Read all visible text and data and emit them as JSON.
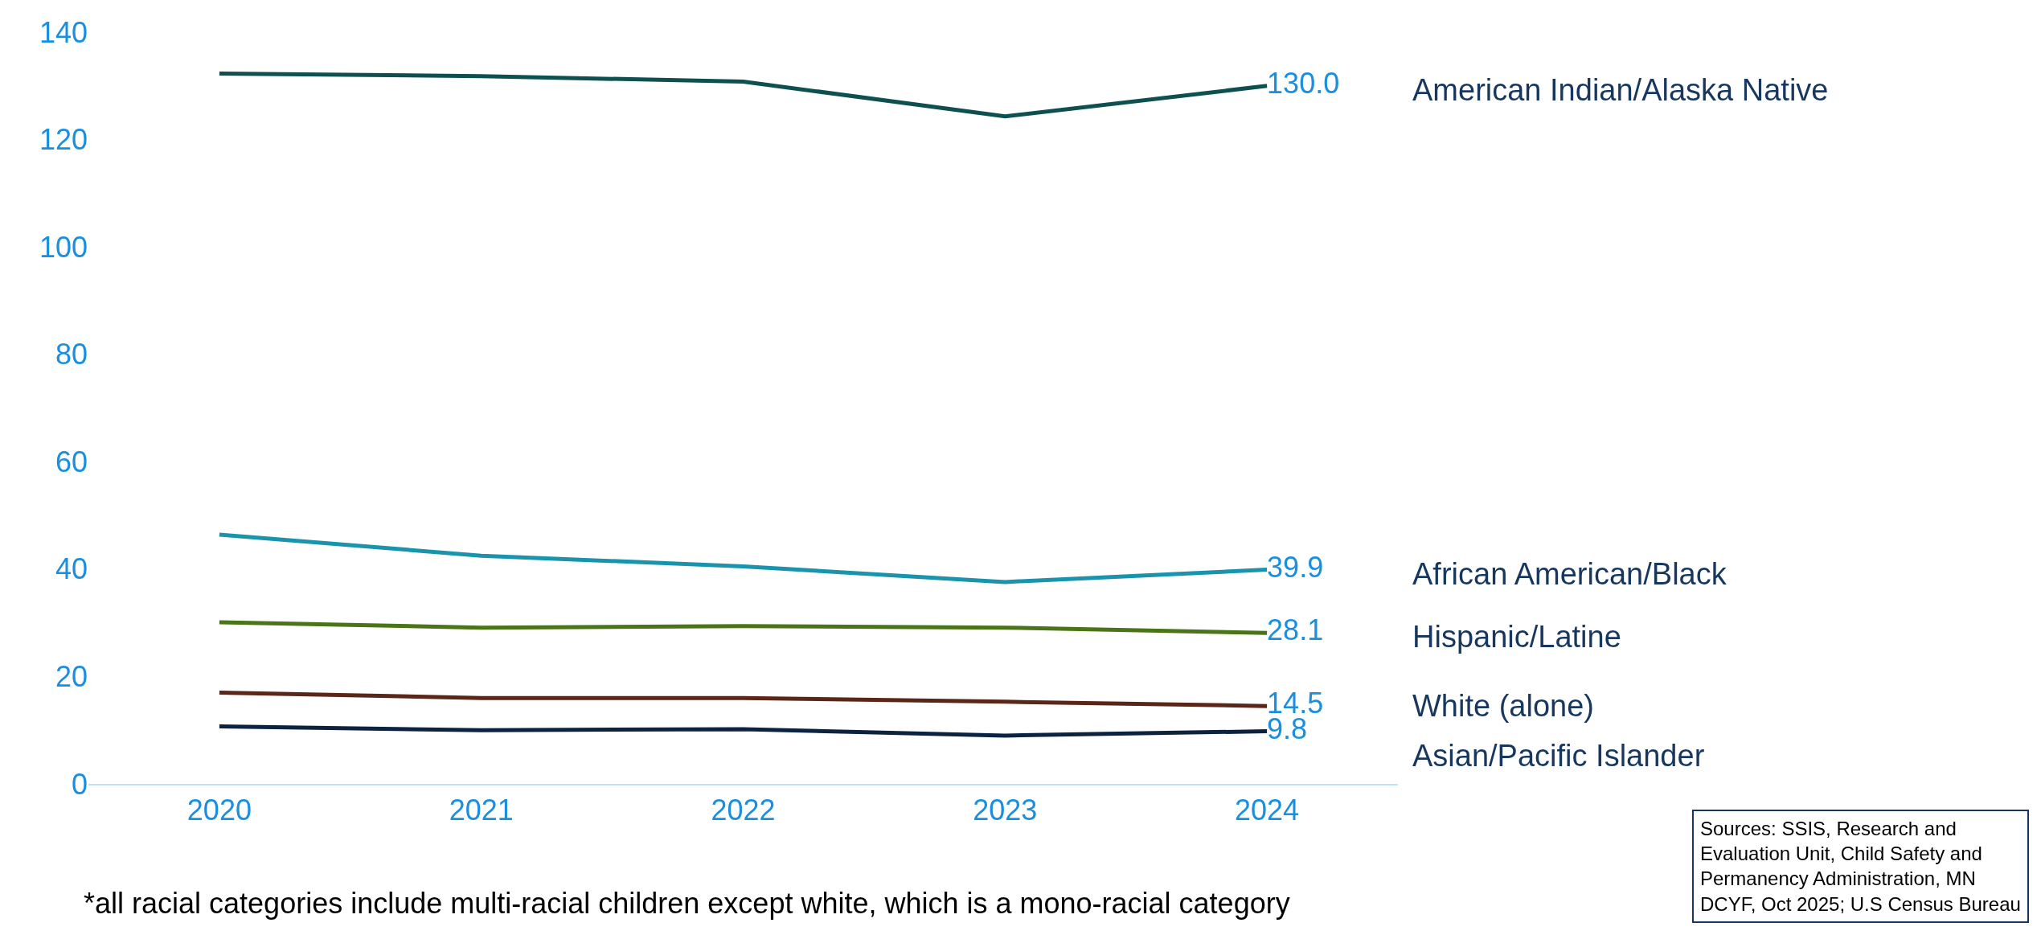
{
  "chart_data": {
    "type": "line",
    "categories": [
      "2020",
      "2021",
      "2022",
      "2023",
      "2024"
    ],
    "ylim": [
      0,
      140
    ],
    "yticks": [
      0,
      20,
      40,
      60,
      80,
      100,
      120,
      140
    ],
    "grid": false,
    "legend": false,
    "marker": "none",
    "line_style": "solid",
    "series": [
      {
        "name": "American Indian/Alaska Native",
        "color": "#0e4f50",
        "values": [
          132.3,
          131.8,
          130.8,
          124.3,
          130.0
        ],
        "value_labels": [
          null,
          null,
          null,
          null,
          "130.0"
        ]
      },
      {
        "name": "African American/Black",
        "color": "#1a94ad",
        "values": [
          46.4,
          42.5,
          40.5,
          37.6,
          39.9
        ],
        "value_labels": [
          null,
          null,
          null,
          null,
          "39.9"
        ]
      },
      {
        "name": "Hispanic/Latine",
        "color": "#4a7418",
        "values": [
          30.1,
          29.1,
          29.4,
          29.1,
          28.1
        ],
        "value_labels": [
          null,
          null,
          null,
          null,
          "28.1"
        ]
      },
      {
        "name": "White (alone)",
        "color": "#5a2618",
        "values": [
          17.0,
          16.0,
          16.0,
          15.3,
          14.5
        ],
        "value_labels": [
          null,
          null,
          null,
          null,
          "14.5"
        ]
      },
      {
        "name": "Asian/Pacific Islander",
        "color": "#0b2240",
        "values": [
          10.7,
          10.0,
          10.2,
          9.0,
          9.8
        ],
        "value_labels": [
          null,
          null,
          null,
          null,
          "9.8"
        ]
      }
    ],
    "annotations": [
      "*all racial categories include multi-racial children except white, which is a mono-racial category",
      "Sources: SSIS, Research and Evaluation Unit, Child Safety and Permanency Administration, MN DCYF, Oct 2025; U.S Census Bureau"
    ]
  }
}
